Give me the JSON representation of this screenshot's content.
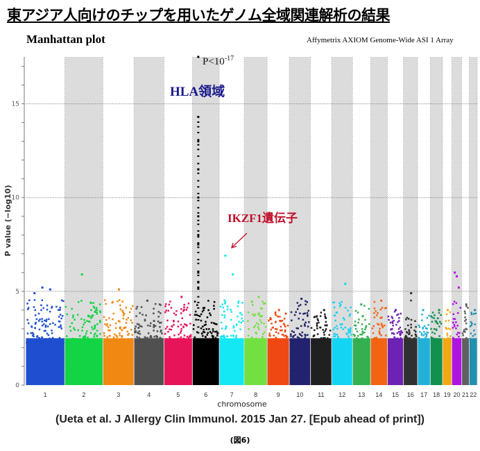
{
  "title": "東アジア人向けのチップを用いたゲノム全域関連解析の結果",
  "plot_title": "Manhattan plot",
  "subtitle": "Affymetrix  AXIOM Genome-Wide  ASI 1 Array",
  "citation": "(Ueta et al. J Allergy Clin Immunol. 2015 Jan 27. [Epub ahead of print])",
  "figure_label": "(図6)",
  "chart_data": {
    "type": "scatter",
    "title": "Manhattan plot",
    "xlabel": "chromosome",
    "ylabel": "P value (−log10)",
    "ylim": [
      0,
      17.5
    ],
    "yticks": [
      "0",
      "5",
      "10",
      "15"
    ],
    "grid": "horizontal dotted at 5, 10, 15",
    "alternating_shading": "even chromosomes shaded gray",
    "chromosomes": [
      {
        "label": "1",
        "size": 249,
        "color": "#1f4fd0",
        "max": 5.2,
        "hits": [
          4.9,
          5.2,
          5.1
        ]
      },
      {
        "label": "2",
        "size": 243,
        "color": "#12d445",
        "max": 5.9,
        "hits": [
          5.9
        ]
      },
      {
        "label": "3",
        "size": 198,
        "color": "#f08812",
        "max": 5.1,
        "hits": [
          5.1
        ]
      },
      {
        "label": "4",
        "size": 191,
        "color": "#505050",
        "max": 4.5,
        "hits": [
          4.5
        ]
      },
      {
        "label": "5",
        "size": 181,
        "color": "#e8145a",
        "max": 4.7,
        "hits": [
          4.7
        ]
      },
      {
        "label": "6",
        "size": 171,
        "color": "#000000",
        "max": 17.5,
        "hits": [
          17.5,
          14.3,
          13.0,
          11.5,
          10.0,
          9.0,
          8.0,
          7.5,
          6.0,
          5.5,
          5.2
        ]
      },
      {
        "label": "7",
        "size": 159,
        "color": "#14e8f4",
        "max": 6.9,
        "hits": [
          6.9,
          5.9
        ]
      },
      {
        "label": "8",
        "size": 146,
        "color": "#72e040",
        "max": 4.7,
        "hits": [
          4.7
        ]
      },
      {
        "label": "9",
        "size": 141,
        "color": "#f04812",
        "max": 4.0,
        "hits": [
          4.0
        ]
      },
      {
        "label": "10",
        "size": 135,
        "color": "#22226e",
        "max": 4.6,
        "hits": [
          4.6
        ]
      },
      {
        "label": "11",
        "size": 135,
        "color": "#202020",
        "max": 4.0,
        "hits": [
          4.0
        ]
      },
      {
        "label": "12",
        "size": 133,
        "color": "#14d4f4",
        "max": 5.4,
        "hits": [
          5.4
        ]
      },
      {
        "label": "13",
        "size": 115,
        "color": "#34b050",
        "max": 4.3,
        "hits": [
          4.3
        ]
      },
      {
        "label": "14",
        "size": 107,
        "color": "#f26412",
        "max": 4.5,
        "hits": [
          4.5
        ]
      },
      {
        "label": "15",
        "size": 102,
        "color": "#6e22b4",
        "max": 4.0,
        "hits": [
          4.0
        ]
      },
      {
        "label": "16",
        "size": 90,
        "color": "#303030",
        "max": 4.9,
        "hits": [
          4.9
        ]
      },
      {
        "label": "17",
        "size": 81,
        "color": "#22b0d8",
        "max": 4.0,
        "hits": [
          4.0
        ]
      },
      {
        "label": "18",
        "size": 78,
        "color": "#129050",
        "max": 4.0,
        "hits": [
          4.0
        ]
      },
      {
        "label": "19",
        "size": 59,
        "color": "#f2a814",
        "max": 4.0,
        "hits": [
          4.0
        ]
      },
      {
        "label": "20",
        "size": 63,
        "color": "#b012e2",
        "max": 6.0,
        "hits": [
          6.0,
          5.8,
          5.2
        ]
      },
      {
        "label": "21",
        "size": 48,
        "color": "#606060",
        "max": 4.3,
        "hits": [
          4.3
        ]
      },
      {
        "label": "22",
        "size": 51,
        "color": "#2090b0",
        "max": 4.0,
        "hits": [
          4.0
        ]
      }
    ],
    "annotations": [
      {
        "text": "HLA領域",
        "chromosome": "6",
        "color": "#1a1a8c"
      },
      {
        "text": "P<10",
        "superscript": "-17",
        "chromosome": "6"
      },
      {
        "text": "IKZF1遺伝子",
        "chromosome": "7",
        "color": "#c0102a"
      }
    ]
  }
}
